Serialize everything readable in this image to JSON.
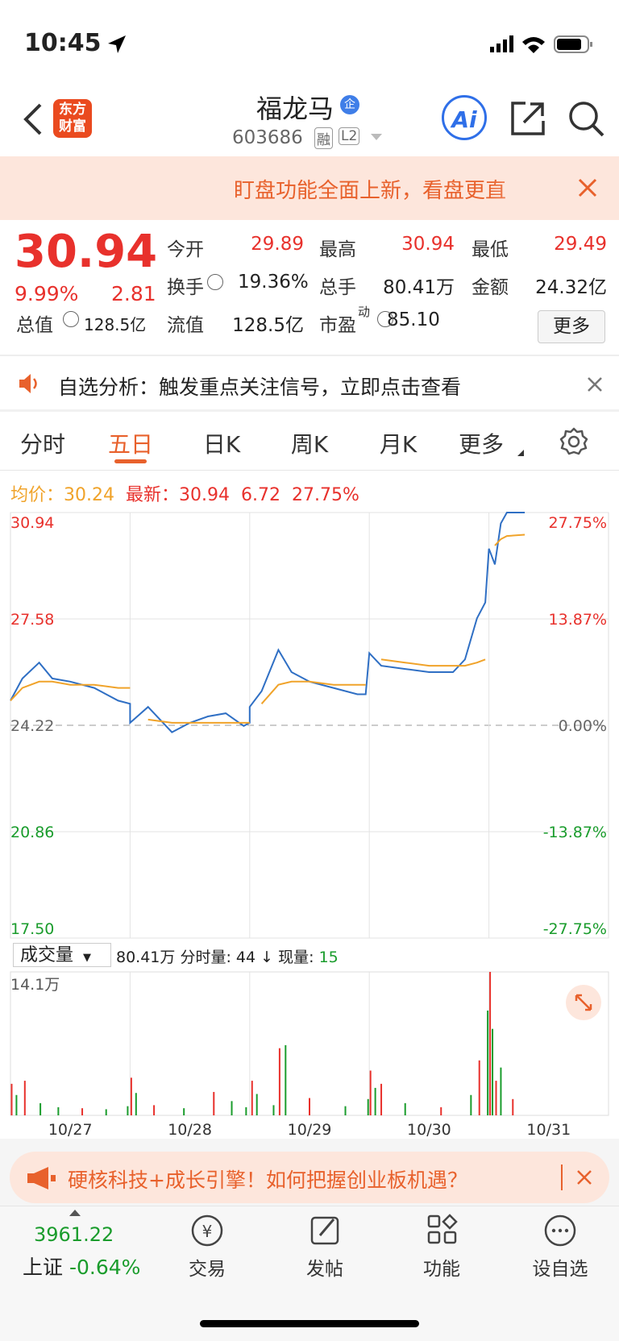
{
  "status_bar": {
    "time": "10:45"
  },
  "header": {
    "title": "福龙马",
    "badge": "企",
    "code": "603686",
    "tag1": "融",
    "tag2": "L2",
    "logo_line1": "东方",
    "logo_line2": "财富",
    "ai": "Ai"
  },
  "banner": {
    "text": "盯盘功能全面上新，看盘更直"
  },
  "quote": {
    "price": "30.94",
    "change_pct": "9.99%",
    "change": "2.81",
    "stats": [
      {
        "label": "今开",
        "value": "29.89"
      },
      {
        "label": "最高",
        "value": "30.94"
      },
      {
        "label": "最低",
        "value": "29.49"
      },
      {
        "label": "换手",
        "value": "19.36%"
      },
      {
        "label": "总手",
        "value": "80.41万"
      },
      {
        "label": "金额",
        "value": "24.32亿"
      },
      {
        "label": "总值",
        "value": "128.5亿"
      },
      {
        "label": "流值",
        "value": "128.5亿"
      },
      {
        "label": "市盈",
        "sup": "动",
        "value": "85.10"
      }
    ],
    "more": "更多"
  },
  "notice": {
    "text": "自选分析：触发重点关注信号，立即点击查看"
  },
  "tabs": {
    "items": [
      "分时",
      "五日",
      "日K",
      "周K",
      "月K",
      "更多"
    ],
    "active": 1
  },
  "legend": {
    "avg_label": "均价：",
    "avg": "30.24",
    "last_label": "最新：",
    "last": "30.94",
    "change": "6.72",
    "change_pct": "27.75%"
  },
  "chart_data": {
    "type": "line",
    "prev_close": 24.22,
    "xlim": [
      0,
      5
    ],
    "ylim": [
      17.5,
      30.94
    ],
    "yticks": [
      {
        "value": 17.5,
        "label": "17.50"
      },
      20.86,
      24.22,
      27.58,
      30.94
    ],
    "y2ticks": [
      {
        "value": 17.5,
        "label": "-27.75%"
      },
      {
        "value": 20.86,
        "label": "-13.87%"
      },
      {
        "value": 24.22,
        "label": "0.00%"
      },
      {
        "value": 27.58,
        "label": "13.87%"
      },
      {
        "value": 30.94,
        "label": "27.75%"
      }
    ],
    "categories": [
      "10/27",
      "10/28",
      "10/29",
      "10/30",
      "10/31"
    ],
    "x": [
      0,
      0.1,
      0.24,
      0.35,
      0.5,
      0.7,
      0.9,
      1.0,
      1.0,
      1.15,
      1.35,
      1.5,
      1.65,
      1.8,
      1.95,
      2.0,
      2.0,
      2.1,
      2.24,
      2.35,
      2.5,
      2.7,
      2.9,
      2.97,
      3.0,
      3.1,
      3.3,
      3.5,
      3.7,
      3.8,
      3.9,
      3.97,
      4.0,
      4.05,
      4.1,
      4.15,
      4.3
    ],
    "series": [
      {
        "color": "#2f6fc4",
        "values": [
          25.0,
          25.7,
          26.2,
          25.7,
          25.6,
          25.4,
          25.0,
          24.9,
          24.3,
          24.8,
          24.0,
          24.3,
          24.5,
          24.6,
          24.2,
          24.3,
          24.8,
          25.3,
          26.6,
          25.9,
          25.6,
          25.4,
          25.2,
          25.2,
          26.5,
          26.1,
          26.0,
          25.9,
          25.9,
          26.3,
          27.6,
          28.1,
          29.8,
          29.3,
          30.6,
          30.94,
          30.94
        ]
      },
      {
        "color": "#f0a32a",
        "values": [
          25.0,
          25.4,
          25.6,
          25.6,
          25.5,
          25.5,
          25.4,
          25.4,
          null,
          24.4,
          24.3,
          24.3,
          24.3,
          24.3,
          24.3,
          24.3,
          null,
          24.9,
          25.5,
          25.6,
          25.6,
          25.5,
          25.5,
          25.5,
          null,
          26.3,
          26.2,
          26.1,
          26.1,
          26.1,
          26.2,
          26.3,
          null,
          29.9,
          30.1,
          30.2,
          30.24
        ]
      }
    ]
  },
  "volume": {
    "label": "成交量",
    "total": "80.41万",
    "minute_label": "分时量:",
    "minute": "44",
    "arrow": "↓",
    "now_label": "现量:",
    "now": "15",
    "ylim": [
      0,
      14.1
    ],
    "yticks": [
      {
        "value": 14.1,
        "label": "14.1万"
      }
    ],
    "x": [
      0.01,
      0.05,
      0.12,
      0.25,
      0.4,
      0.6,
      0.8,
      0.98,
      1.01,
      1.05,
      1.2,
      1.45,
      1.7,
      1.85,
      1.97,
      2.02,
      2.06,
      2.2,
      2.25,
      2.3,
      2.5,
      2.8,
      2.99,
      3.01,
      3.05,
      3.1,
      3.3,
      3.6,
      3.85,
      3.92,
      3.99,
      4.01,
      4.03,
      4.06,
      4.1,
      4.2
    ],
    "values": [
      3.1,
      2.0,
      3.4,
      1.2,
      0.8,
      0.7,
      0.6,
      0.9,
      3.7,
      2.2,
      1.0,
      0.7,
      2.3,
      1.4,
      0.8,
      3.4,
      2.1,
      1.0,
      6.6,
      6.9,
      1.7,
      0.9,
      1.6,
      4.4,
      2.7,
      3.1,
      1.2,
      0.8,
      2.0,
      5.4,
      10.3,
      14.1,
      8.5,
      3.4,
      4.7,
      1.6
    ],
    "colors": [
      "#e8312c",
      "#1a9c2c",
      "#e8312c",
      "#1a9c2c",
      "#1a9c2c",
      "#e8312c",
      "#1a9c2c",
      "#1a9c2c",
      "#e8312c",
      "#1a9c2c",
      "#e8312c",
      "#1a9c2c",
      "#e8312c",
      "#1a9c2c",
      "#1a9c2c",
      "#e8312c",
      "#1a9c2c",
      "#1a9c2c",
      "#e8312c",
      "#1a9c2c",
      "#e8312c",
      "#1a9c2c",
      "#1a9c2c",
      "#e8312c",
      "#1a9c2c",
      "#e8312c",
      "#1a9c2c",
      "#e8312c",
      "#1a9c2c",
      "#e8312c",
      "#1a9c2c",
      "#e8312c",
      "#1a9c2c",
      "#e8312c",
      "#1a9c2c",
      "#e8312c"
    ]
  },
  "ad": {
    "text": "硬核科技+成长引擎！如何把握创业板机遇？"
  },
  "bottom_bar": {
    "index_value": "3961.22",
    "index_name": "上证",
    "index_change": "-0.64%",
    "items": [
      "交易",
      "发帖",
      "功能",
      "设自选"
    ]
  }
}
